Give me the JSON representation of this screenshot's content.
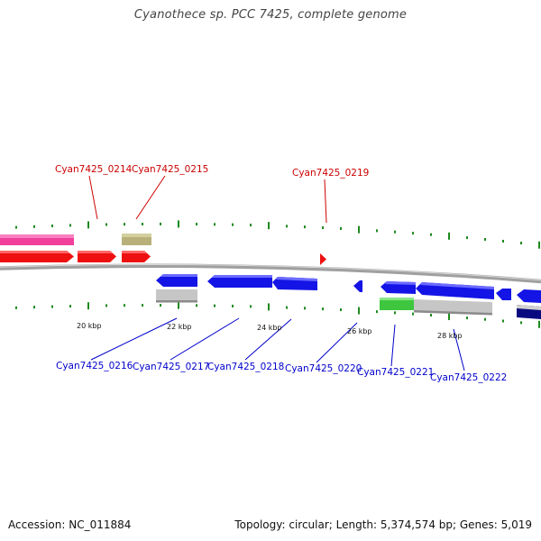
{
  "title": "Cyanothece sp. PCC 7425, complete genome",
  "footer": {
    "accession": "Accession: NC_011884",
    "summary": "Topology: circular; Length: 5,374,574 bp; Genes: 5,019"
  },
  "colors": {
    "top_labels": "#cc0000",
    "bottom_labels": "#0000cc",
    "tick": "#1e8a1e",
    "magenta": "#f0409c",
    "olive": "#b8b078",
    "red": "#ee1010",
    "blue": "#1414e6",
    "gray": "#c6c6c6",
    "green": "#3ec63e",
    "navy": "#0a0a80",
    "backbone": "#8a8a8a"
  },
  "ruler": {
    "labels": [
      "20 kbp",
      "22 kbp",
      "24 kbp",
      "26 kbp",
      "28 kbp"
    ]
  },
  "gene_labels_top": [
    "Cyan7425_0214",
    "Cyan7425_0215",
    "Cyan7425_0219"
  ],
  "gene_labels_bottom": [
    "Cyan7425_0216",
    "Cyan7425_0217",
    "Cyan7425_0218",
    "Cyan7425_0220",
    "Cyan7425_0221",
    "Cyan7425_0222"
  ]
}
